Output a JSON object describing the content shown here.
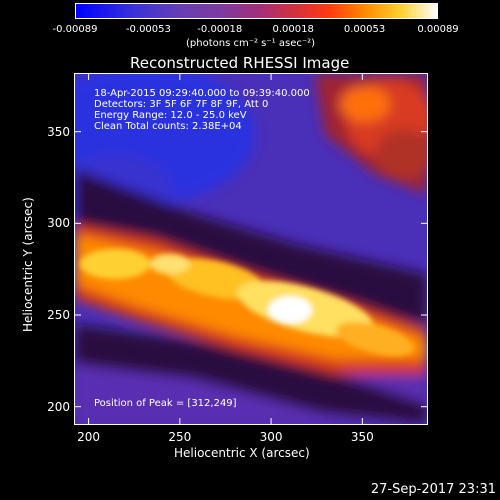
{
  "colorbar": {
    "ticks": [
      "-0.00089",
      "-0.00053",
      "-0.00018",
      "0.00018",
      "0.00053",
      "0.00089"
    ],
    "units": "(photons cm⁻² s⁻¹ asec⁻²)"
  },
  "chart_data": {
    "type": "heatmap",
    "title": "Reconstructed RHESSI Image",
    "xlabel": "Heliocentric X (arcsec)",
    "ylabel": "Heliocentric Y (arcsec)",
    "xlim": [
      192,
      386
    ],
    "ylim": [
      190,
      382
    ],
    "xticks": [
      200,
      250,
      300,
      350
    ],
    "yticks": [
      200,
      250,
      300,
      350
    ],
    "color_range": [
      -0.00089,
      0.00089
    ],
    "colormap": "blue-purple-red-orange-yellow-white",
    "peak": [
      312,
      249
    ],
    "annotations": [
      "18-Apr-2015 09:29:40.000 to 09:39:40.000",
      "Detectors: 3F 5F 6F 7F 8F 9F, Att 0",
      "Energy Range: 12.0 - 25.0 keV",
      "Clean     Total counts: 2.38E+04"
    ],
    "peak_label": "Position of Peak = [312,249]"
  },
  "timestamp": "27-Sep-2017 23:31"
}
